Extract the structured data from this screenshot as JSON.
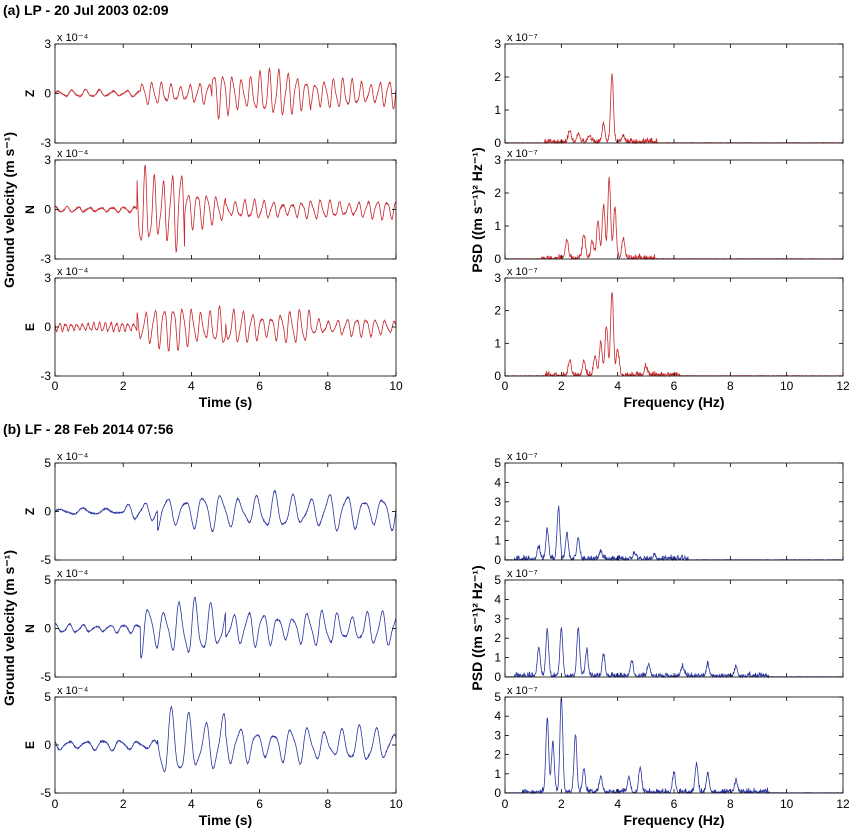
{
  "colors": {
    "lp": "#c8272b",
    "lf": "#2a35a0",
    "axis": "#000000"
  },
  "chart_data": [
    {
      "id": "a",
      "title": "(a)  LP - 20 Jul 2003 02:09",
      "color": "#c8272b",
      "waveform": {
        "type": "line",
        "xlabel": "Time (s)",
        "ylabel": "Ground velocity (m s⁻¹)",
        "xlim": [
          0,
          10
        ],
        "xticks": [
          "0",
          "2",
          "4",
          "6",
          "8",
          "10"
        ],
        "ylim": [
          -3,
          3
        ],
        "yticks": [
          "-3",
          "0",
          "3"
        ],
        "exponent": "x 10⁻⁴",
        "components": [
          {
            "name": "Z",
            "segments": [
              {
                "t0": 0,
                "t1": 2.5,
                "amp": 0.2,
                "freq": 2.5
              },
              {
                "t0": 2.5,
                "t1": 4.6,
                "amp": 0.6,
                "freq": 3.6
              },
              {
                "t0": 4.6,
                "t1": 7.5,
                "amp": 1.25,
                "freq": 3.7
              },
              {
                "t0": 7.5,
                "t1": 10,
                "amp": 0.8,
                "freq": 3.7
              }
            ]
          },
          {
            "name": "N",
            "segments": [
              {
                "t0": 0,
                "t1": 2.4,
                "amp": 0.15,
                "freq": 3.0
              },
              {
                "t0": 2.4,
                "t1": 3.8,
                "amp": 2.5,
                "freq": 3.8
              },
              {
                "t0": 3.8,
                "t1": 5.0,
                "amp": 1.0,
                "freq": 3.6
              },
              {
                "t0": 5.0,
                "t1": 10,
                "amp": 0.5,
                "freq": 3.6
              }
            ]
          },
          {
            "name": "E",
            "segments": [
              {
                "t0": 0,
                "t1": 2.4,
                "amp": 0.25,
                "freq": 6.0
              },
              {
                "t0": 2.4,
                "t1": 5.0,
                "amp": 1.2,
                "freq": 3.7
              },
              {
                "t0": 5.0,
                "t1": 7.5,
                "amp": 0.9,
                "freq": 3.6
              },
              {
                "t0": 7.5,
                "t1": 10,
                "amp": 0.5,
                "freq": 3.6
              }
            ]
          }
        ]
      },
      "psd": {
        "type": "line",
        "xlabel": "Frequency (Hz)",
        "ylabel": "PSD ((m s⁻¹)² Hz⁻¹)",
        "xlim": [
          0,
          12
        ],
        "xticks": [
          "0",
          "2",
          "4",
          "6",
          "8",
          "10",
          "12"
        ],
        "ylim": [
          0,
          3
        ],
        "yticks": [
          "0",
          "1",
          "2",
          "3"
        ],
        "exponent": "x 10⁻⁷",
        "components": [
          {
            "name": "Z",
            "peaks": [
              {
                "f": 3.8,
                "v": 2.05
              },
              {
                "f": 3.5,
                "v": 0.55
              },
              {
                "f": 2.3,
                "v": 0.35
              },
              {
                "f": 2.6,
                "v": 0.25
              },
              {
                "f": 3.0,
                "v": 0.2
              },
              {
                "f": 4.2,
                "v": 0.2
              }
            ]
          },
          {
            "name": "N",
            "peaks": [
              {
                "f": 3.7,
                "v": 2.4
              },
              {
                "f": 3.5,
                "v": 1.6
              },
              {
                "f": 3.9,
                "v": 1.5
              },
              {
                "f": 3.3,
                "v": 1.1
              },
              {
                "f": 4.2,
                "v": 0.6
              },
              {
                "f": 2.2,
                "v": 0.55
              },
              {
                "f": 2.8,
                "v": 0.7
              },
              {
                "f": 3.1,
                "v": 0.5
              }
            ]
          },
          {
            "name": "E",
            "peaks": [
              {
                "f": 3.8,
                "v": 2.55
              },
              {
                "f": 3.6,
                "v": 1.5
              },
              {
                "f": 3.4,
                "v": 1.0
              },
              {
                "f": 4.0,
                "v": 0.8
              },
              {
                "f": 3.2,
                "v": 0.6
              },
              {
                "f": 2.3,
                "v": 0.45
              },
              {
                "f": 2.8,
                "v": 0.4
              },
              {
                "f": 5.0,
                "v": 0.25
              }
            ]
          }
        ]
      }
    },
    {
      "id": "b",
      "title": "(b)  LF - 28 Feb 2014 07:56",
      "color": "#2a35a0",
      "waveform": {
        "type": "line",
        "xlabel": "Time (s)",
        "ylabel": "Ground velocity (m s⁻¹)",
        "xlim": [
          0,
          10
        ],
        "xticks": [
          "0",
          "2",
          "4",
          "6",
          "8",
          "10"
        ],
        "ylim": [
          -5,
          5
        ],
        "yticks": [
          "-5",
          "0",
          "5"
        ],
        "exponent": "x 10⁻⁴",
        "components": [
          {
            "name": "Z",
            "segments": [
              {
                "t0": 0,
                "t1": 2.0,
                "amp": 0.3,
                "freq": 1.5
              },
              {
                "t0": 2.0,
                "t1": 3.0,
                "amp": 0.8,
                "freq": 2.0
              },
              {
                "t0": 3.0,
                "t1": 10,
                "amp": 1.7,
                "freq": 1.9
              }
            ]
          },
          {
            "name": "N",
            "segments": [
              {
                "t0": 0,
                "t1": 2.5,
                "amp": 0.4,
                "freq": 2.5
              },
              {
                "t0": 2.5,
                "t1": 5.0,
                "amp": 2.6,
                "freq": 2.2
              },
              {
                "t0": 5.0,
                "t1": 10,
                "amp": 1.6,
                "freq": 2.3
              }
            ]
          },
          {
            "name": "E",
            "segments": [
              {
                "t0": 0,
                "t1": 3.0,
                "amp": 0.5,
                "freq": 2.0
              },
              {
                "t0": 3.0,
                "t1": 5.0,
                "amp": 3.2,
                "freq": 2.0
              },
              {
                "t0": 5.0,
                "t1": 10,
                "amp": 1.7,
                "freq": 2.0
              }
            ]
          }
        ]
      },
      "psd": {
        "type": "line",
        "xlabel": "Frequency (Hz)",
        "ylabel": "PSD ((m s⁻¹)² Hz⁻¹)",
        "xlim": [
          0,
          12
        ],
        "xticks": [
          "0",
          "2",
          "4",
          "6",
          "8",
          "10",
          "12"
        ],
        "ylim": [
          0,
          5
        ],
        "yticks": [
          "0",
          "1",
          "2",
          "3",
          "4",
          "5"
        ],
        "exponent": "x 10⁻⁷",
        "components": [
          {
            "name": "Z",
            "peaks": [
              {
                "f": 1.9,
                "v": 2.6
              },
              {
                "f": 1.5,
                "v": 1.5
              },
              {
                "f": 2.2,
                "v": 1.3
              },
              {
                "f": 2.6,
                "v": 1.1
              },
              {
                "f": 1.2,
                "v": 0.6
              },
              {
                "f": 3.4,
                "v": 0.4
              },
              {
                "f": 4.6,
                "v": 0.3
              },
              {
                "f": 5.3,
                "v": 0.2
              }
            ]
          },
          {
            "name": "N",
            "peaks": [
              {
                "f": 2.0,
                "v": 2.5
              },
              {
                "f": 1.5,
                "v": 2.4
              },
              {
                "f": 2.6,
                "v": 2.5
              },
              {
                "f": 1.2,
                "v": 1.5
              },
              {
                "f": 2.9,
                "v": 1.3
              },
              {
                "f": 3.5,
                "v": 1.0
              },
              {
                "f": 4.5,
                "v": 0.8
              },
              {
                "f": 5.1,
                "v": 0.6
              },
              {
                "f": 6.3,
                "v": 0.5
              },
              {
                "f": 7.2,
                "v": 0.6
              },
              {
                "f": 8.2,
                "v": 0.5
              }
            ]
          },
          {
            "name": "E",
            "peaks": [
              {
                "f": 2.0,
                "v": 4.9
              },
              {
                "f": 1.5,
                "v": 3.8
              },
              {
                "f": 1.7,
                "v": 2.6
              },
              {
                "f": 2.5,
                "v": 3.0
              },
              {
                "f": 2.8,
                "v": 1.2
              },
              {
                "f": 3.4,
                "v": 0.8
              },
              {
                "f": 4.8,
                "v": 1.3
              },
              {
                "f": 4.4,
                "v": 0.8
              },
              {
                "f": 6.0,
                "v": 1.0
              },
              {
                "f": 6.8,
                "v": 1.5
              },
              {
                "f": 7.2,
                "v": 1.0
              },
              {
                "f": 8.2,
                "v": 0.6
              }
            ]
          }
        ]
      }
    }
  ]
}
